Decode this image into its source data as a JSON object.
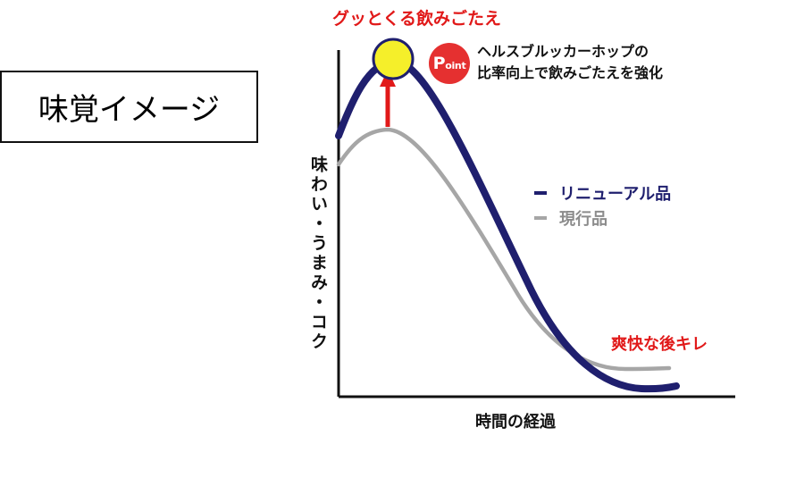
{
  "box_label": "味覚イメージ",
  "peak_annotation": "グッとくる飲みごたえ",
  "point_badge": {
    "prefix": "P",
    "suffix": "oint"
  },
  "point_text": [
    "ヘルスブルッカーホップの",
    "比率向上で飲みごたえを強化"
  ],
  "legend": [
    {
      "label": "リニューアル品",
      "color": "#1f1f6e"
    },
    {
      "label": "現行品",
      "color": "#a6a6a6"
    }
  ],
  "y_axis_label": "味わい・うまみ・コク",
  "x_axis_label": "時間の経過",
  "finish_annotation": "爽快な後キレ",
  "colors": {
    "renewal": "#1f1f6e",
    "current": "#a6a6a6",
    "accent": "#e11919",
    "highlight": "#f5ef2a"
  }
}
